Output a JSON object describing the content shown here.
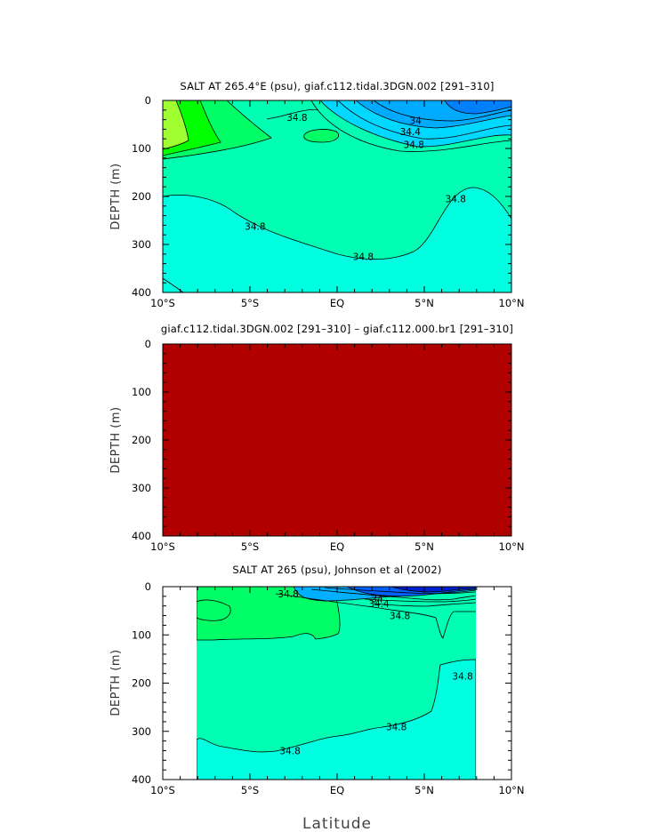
{
  "chart_data": [
    {
      "type": "contour",
      "title": "SALT AT 265.4°E (psu), giaf.c112.tidal.3DGN.002 [291–310]",
      "xlabel": "",
      "ylabel": "DEPTH (m)",
      "xlim": [
        -10,
        10
      ],
      "ylim": [
        400,
        0
      ],
      "xticks": [
        "10°S",
        "5°S",
        "EQ",
        "5°N",
        "10°N"
      ],
      "yticks": [
        "0",
        "100",
        "200",
        "300",
        "400"
      ],
      "contour_labels": [
        {
          "value": "34.8",
          "lat": -2.3,
          "depth": 35
        },
        {
          "value": "34",
          "lat": 4.5,
          "depth": 42
        },
        {
          "value": "34.4",
          "lat": 4.2,
          "depth": 65
        },
        {
          "value": "34.8",
          "lat": 4.4,
          "depth": 92
        },
        {
          "value": "34.8",
          "lat": -4.7,
          "depth": 262
        },
        {
          "value": "34.8",
          "lat": 1.5,
          "depth": 325
        },
        {
          "value": "34.8",
          "lat": 6.8,
          "depth": 205
        }
      ],
      "colors": {
        "deep": "#00ffe0",
        "main": "#00ffb3",
        "high1": "#00ff66",
        "high2": "#00ff00",
        "high3": "#a0ff30",
        "low1": "#00d8ff",
        "low2": "#00aaff",
        "low3": "#0080ff"
      }
    },
    {
      "type": "contour",
      "title": "giaf.c112.tidal.3DGN.002 [291–310] – giaf.c112.000.br1 [291–310]",
      "xlabel": "",
      "ylabel": "DEPTH (m)",
      "xlim": [
        -10,
        10
      ],
      "ylim": [
        400,
        0
      ],
      "xticks": [
        "10°S",
        "5°S",
        "EQ",
        "5°N",
        "10°N"
      ],
      "yticks": [
        "0",
        "100",
        "200",
        "300",
        "400"
      ],
      "colors": {
        "fill": "#b00000"
      }
    },
    {
      "type": "contour",
      "title": "SALT AT 265 (psu), Johnson et al (2002)",
      "xlabel": "Latitude",
      "ylabel": "DEPTH (m)",
      "xlim": [
        -10,
        10
      ],
      "ylim": [
        400,
        0
      ],
      "data_lat_range": [
        -8,
        8
      ],
      "xticks": [
        "10°S",
        "5°S",
        "EQ",
        "5°N",
        "10°N"
      ],
      "yticks": [
        "0",
        "100",
        "200",
        "300",
        "400"
      ],
      "contour_labels": [
        {
          "value": "34.8",
          "lat": -2.8,
          "depth": 15
        },
        {
          "value": "34",
          "lat": 2.3,
          "depth": 25
        },
        {
          "value": "34.4",
          "lat": 2.4,
          "depth": 35
        },
        {
          "value": "34.8",
          "lat": 3.6,
          "depth": 60
        },
        {
          "value": "34.8",
          "lat": -2.7,
          "depth": 340
        },
        {
          "value": "34.8",
          "lat": 3.4,
          "depth": 290
        },
        {
          "value": "34.8",
          "lat": 7.2,
          "depth": 185
        }
      ],
      "colors": {
        "deep": "#00ffe0",
        "main": "#00ffb3",
        "high1": "#00ff66",
        "low1": "#00b0ff",
        "low2": "#0060ff",
        "low3": "#0020d0"
      }
    }
  ]
}
